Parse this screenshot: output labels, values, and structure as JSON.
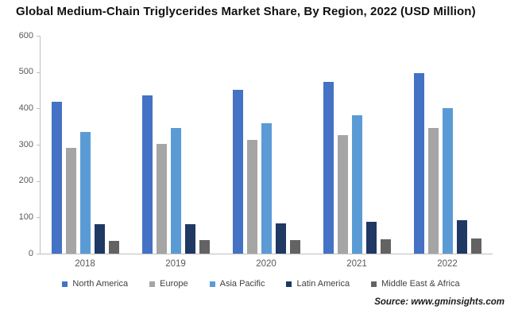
{
  "title": "Global Medium-Chain Triglycerides Market Share, By Region, 2022 (USD Million)",
  "source": "Source: www.gminsights.com",
  "chart_data": {
    "type": "bar",
    "title": "Global Medium-Chain Triglycerides Market Share, By Region, 2022 (USD Million)",
    "categories": [
      "2018",
      "2019",
      "2020",
      "2021",
      "2022"
    ],
    "series": [
      {
        "name": "North America",
        "color": "#4472C4",
        "values": [
          418,
          436,
          450,
          472,
          497
        ]
      },
      {
        "name": "Europe",
        "color": "#A5A5A5",
        "values": [
          292,
          303,
          314,
          327,
          345
        ]
      },
      {
        "name": "Asia Pacific",
        "color": "#5B9BD5",
        "values": [
          334,
          347,
          360,
          381,
          400
        ]
      },
      {
        "name": "Latin America",
        "color": "#1F3864",
        "values": [
          80,
          82,
          84,
          87,
          91
        ]
      },
      {
        "name": "Middle East & Africa",
        "color": "#636363",
        "values": [
          36,
          38,
          38,
          40,
          42
        ]
      }
    ],
    "xlabel": "",
    "ylabel": "",
    "ylim": [
      0,
      600
    ],
    "ytick_step": 100,
    "grid": false,
    "legend_position": "bottom"
  }
}
